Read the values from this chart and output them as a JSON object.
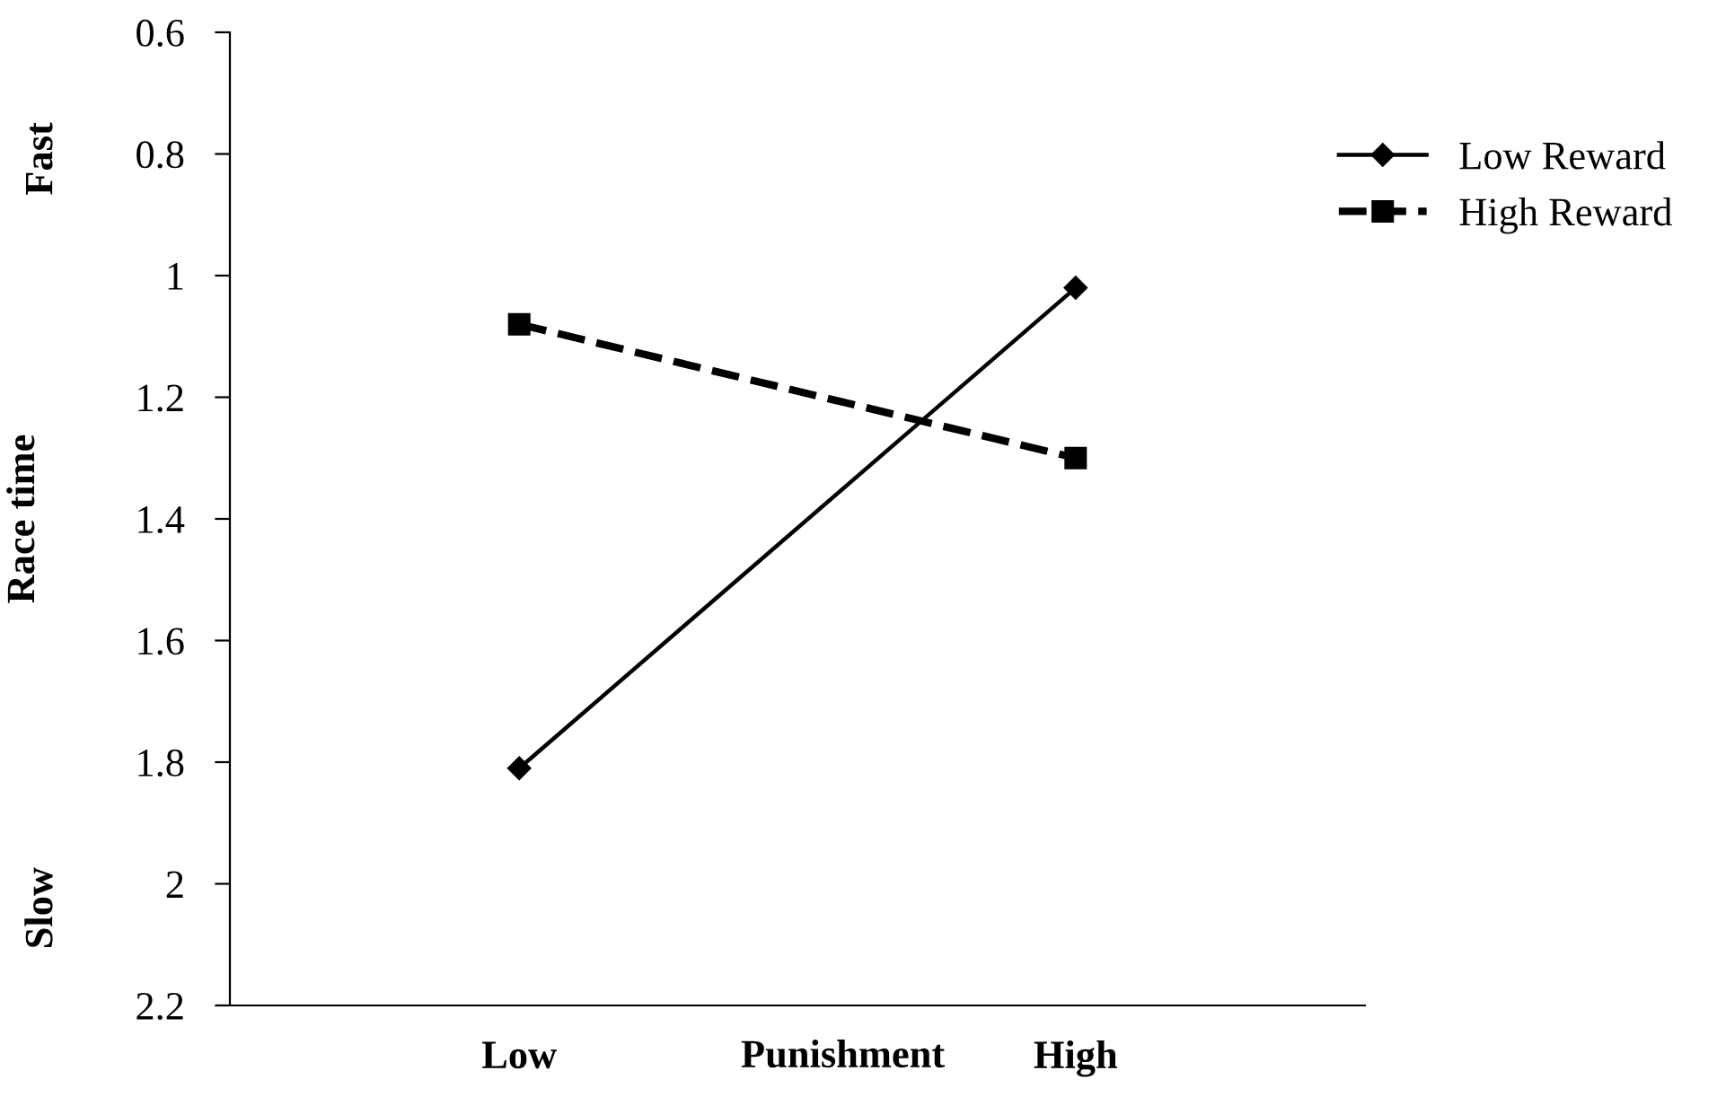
{
  "chart_data": {
    "type": "line",
    "xlabel": "Punishment",
    "ylabel": "Race time",
    "categories": [
      "Low",
      "High"
    ],
    "series": [
      {
        "name": "Low Reward",
        "color": "#000000",
        "values": [
          1.81,
          1.02
        ],
        "marker": "diamond",
        "line_style": "solid"
      },
      {
        "name": "High Reward",
        "color": "#000000",
        "values": [
          1.08,
          1.3
        ],
        "marker": "square",
        "line_style": "dashed"
      }
    ],
    "ylim": [
      2.2,
      0.6
    ],
    "yticks": [
      {
        "value": 0.6,
        "label": "0.6"
      },
      {
        "value": 0.8,
        "label": "0.8"
      },
      1,
      {
        "value": 1.2,
        "label": "1.2"
      },
      {
        "value": 1.4,
        "label": "1.4"
      },
      {
        "value": 1.6,
        "label": "1.6"
      },
      {
        "value": 1.8,
        "label": "1.8"
      },
      2,
      {
        "value": 2.2,
        "label": "2.2"
      }
    ],
    "annotations": [
      "Fast",
      "Slow"
    ],
    "grid": false,
    "legend": "top right"
  }
}
